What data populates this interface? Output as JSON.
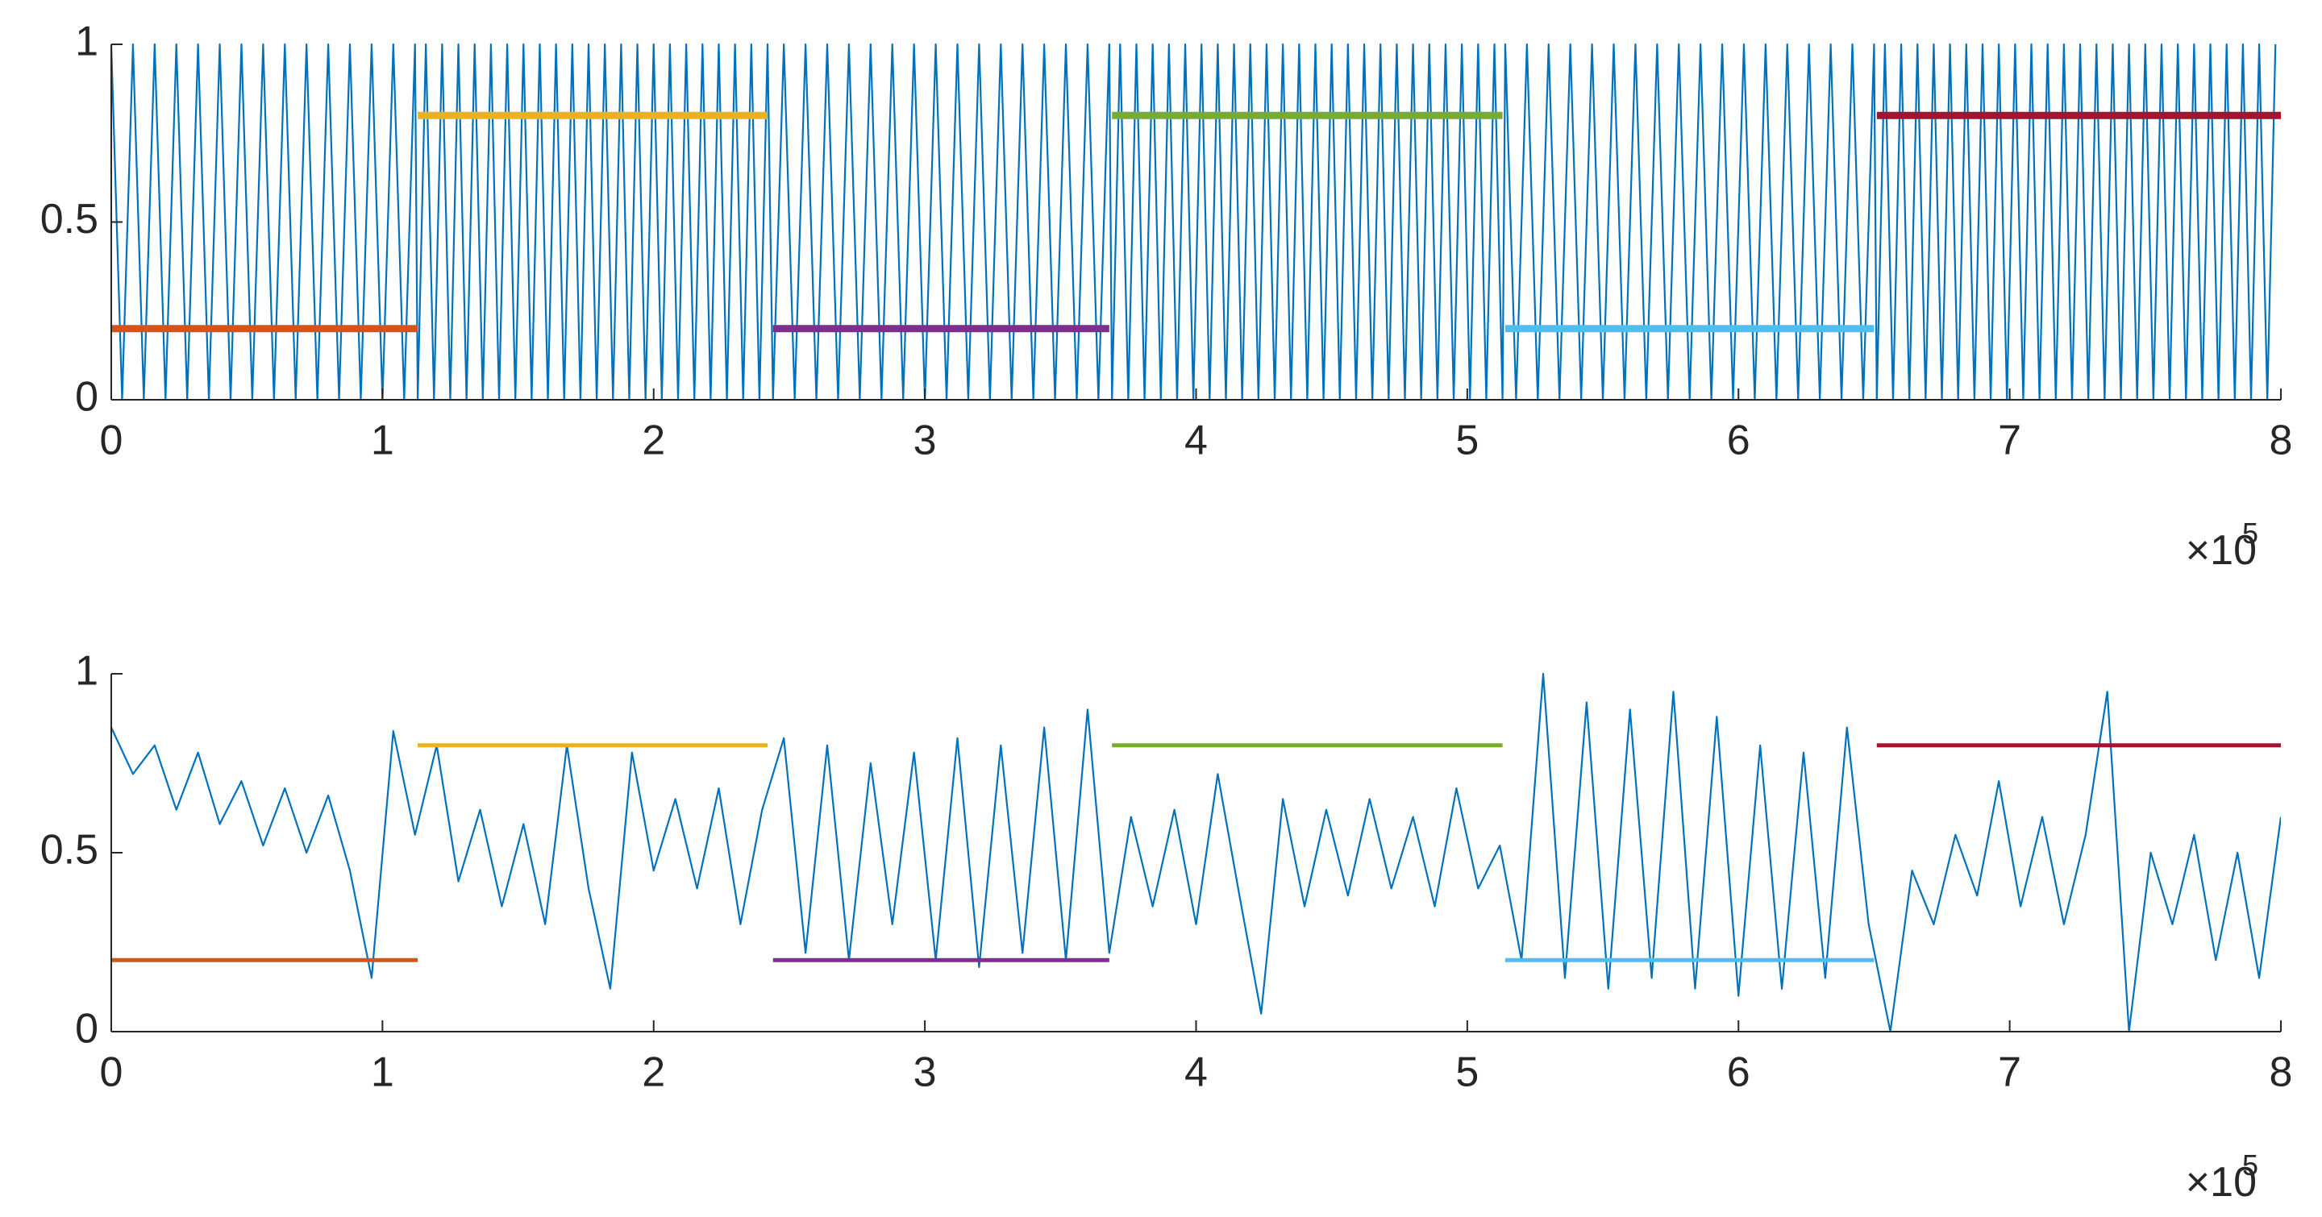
{
  "chart_data": [
    {
      "type": "line",
      "xlim": [
        0,
        8
      ],
      "ylim": [
        0,
        1
      ],
      "xticks": [
        0,
        1,
        2,
        3,
        4,
        5,
        6,
        7,
        8
      ],
      "yticks": [
        0,
        0.5,
        1
      ],
      "x_multiplier": {
        "base": "×10",
        "power": "5"
      },
      "series": [
        {
          "color": "#0072bd",
          "x": [
            0,
            0.04,
            0.08,
            0.12,
            0.16,
            0.2,
            0.24,
            0.28,
            0.32,
            0.36,
            0.4,
            0.44,
            0.48,
            0.52,
            0.56,
            0.6,
            0.64,
            0.68,
            0.72,
            0.76,
            0.8,
            0.84,
            0.88,
            0.92,
            0.96,
            1,
            1.04,
            1.08,
            1.12,
            1.13,
            1.16,
            1.19,
            1.22,
            1.25,
            1.28,
            1.31,
            1.34,
            1.37,
            1.4,
            1.43,
            1.46,
            1.49,
            1.52,
            1.55,
            1.58,
            1.61,
            1.64,
            1.67,
            1.7,
            1.73,
            1.76,
            1.79,
            1.82,
            1.85,
            1.88,
            1.91,
            1.94,
            1.97,
            2,
            2.03,
            2.06,
            2.09,
            2.12,
            2.15,
            2.18,
            2.21,
            2.24,
            2.27,
            2.3,
            2.33,
            2.36,
            2.39,
            2.42,
            2.44,
            2.48,
            2.52,
            2.56,
            2.6,
            2.64,
            2.68,
            2.72,
            2.76,
            2.8,
            2.84,
            2.88,
            2.92,
            2.96,
            3,
            3.04,
            3.08,
            3.12,
            3.16,
            3.2,
            3.24,
            3.28,
            3.32,
            3.36,
            3.4,
            3.44,
            3.48,
            3.52,
            3.56,
            3.6,
            3.64,
            3.68,
            3.69,
            3.72,
            3.75,
            3.78,
            3.81,
            3.84,
            3.87,
            3.9,
            3.93,
            3.96,
            3.99,
            4.02,
            4.05,
            4.08,
            4.11,
            4.14,
            4.17,
            4.2,
            4.23,
            4.26,
            4.29,
            4.32,
            4.35,
            4.38,
            4.41,
            4.44,
            4.47,
            4.5,
            4.53,
            4.56,
            4.59,
            4.62,
            4.65,
            4.68,
            4.71,
            4.74,
            4.77,
            4.8,
            4.83,
            4.86,
            4.89,
            4.92,
            4.95,
            4.98,
            5.01,
            5.04,
            5.07,
            5.1,
            5.13,
            5.14,
            5.18,
            5.22,
            5.26,
            5.3,
            5.34,
            5.38,
            5.42,
            5.46,
            5.5,
            5.54,
            5.58,
            5.62,
            5.66,
            5.7,
            5.74,
            5.78,
            5.82,
            5.86,
            5.9,
            5.94,
            5.98,
            6.02,
            6.06,
            6.1,
            6.14,
            6.18,
            6.22,
            6.26,
            6.3,
            6.34,
            6.38,
            6.42,
            6.46,
            6.5,
            6.51,
            6.54,
            6.57,
            6.6,
            6.63,
            6.66,
            6.69,
            6.72,
            6.75,
            6.78,
            6.81,
            6.84,
            6.87,
            6.9,
            6.93,
            6.96,
            6.99,
            7.02,
            7.05,
            7.08,
            7.11,
            7.14,
            7.17,
            7.2,
            7.23,
            7.26,
            7.29,
            7.32,
            7.35,
            7.38,
            7.41,
            7.44,
            7.47,
            7.5,
            7.53,
            7.56,
            7.59,
            7.62,
            7.65,
            7.68,
            7.71,
            7.74,
            7.77,
            7.8,
            7.83,
            7.86,
            7.89,
            7.92,
            7.95,
            7.98
          ],
          "values": [
            1,
            0,
            1,
            0,
            1,
            0,
            1,
            0,
            1,
            0,
            1,
            0,
            1,
            0,
            1,
            0,
            1,
            0,
            1,
            0,
            1,
            0,
            1,
            0,
            1,
            0,
            1,
            0,
            1,
            0,
            1,
            0,
            1,
            0,
            1,
            0,
            1,
            0,
            1,
            0,
            1,
            0,
            1,
            0,
            1,
            0,
            1,
            0,
            1,
            0,
            1,
            0,
            1,
            0,
            1,
            0,
            1,
            0,
            1,
            0,
            1,
            0,
            1,
            0,
            1,
            0,
            1,
            0,
            1,
            0,
            1,
            0,
            1,
            0,
            1,
            0,
            1,
            0,
            1,
            0,
            1,
            0,
            1,
            0,
            1,
            0,
            1,
            0,
            1,
            0,
            1,
            0,
            1,
            0,
            1,
            0,
            1,
            0,
            1,
            0,
            1,
            0,
            1,
            0,
            1,
            0,
            1,
            0,
            1,
            0,
            1,
            0,
            1,
            0,
            1,
            0,
            1,
            0,
            1,
            0,
            1,
            0,
            1,
            0,
            1,
            0,
            1,
            0,
            1,
            0,
            1,
            0,
            1,
            0,
            1,
            0,
            1,
            0,
            1,
            0,
            1,
            0,
            1,
            0,
            1,
            0,
            1,
            0,
            1,
            0,
            1,
            0,
            1,
            0,
            1,
            0,
            1,
            0,
            1,
            0,
            1,
            0,
            1,
            0,
            1,
            0,
            1,
            0,
            1,
            0,
            1,
            0,
            1,
            0,
            1,
            0,
            1,
            0,
            1,
            0,
            1,
            0,
            1,
            0,
            1,
            0,
            1,
            0,
            1,
            0,
            1,
            0,
            1,
            0,
            1,
            0,
            1,
            0,
            1,
            0,
            1,
            0,
            1,
            0,
            1,
            0,
            1,
            0,
            1,
            0,
            1,
            0,
            1,
            0,
            1,
            0,
            1,
            0,
            1,
            0,
            1,
            0,
            1,
            0,
            1,
            0,
            1,
            0,
            1,
            0,
            1,
            0,
            1,
            0,
            1,
            0,
            1,
            0,
            1
          ]
        },
        {
          "color": "#d95319",
          "x": [
            0,
            1.13
          ],
          "values": [
            0.2,
            0.2
          ]
        },
        {
          "color": "#edb120",
          "x": [
            1.13,
            2.42
          ],
          "values": [
            0.8,
            0.8
          ]
        },
        {
          "color": "#7e2f8e",
          "x": [
            2.44,
            3.68
          ],
          "values": [
            0.2,
            0.2
          ]
        },
        {
          "color": "#77ac30",
          "x": [
            3.69,
            5.13
          ],
          "values": [
            0.8,
            0.8
          ]
        },
        {
          "color": "#4dbeee",
          "x": [
            5.14,
            6.5
          ],
          "values": [
            0.2,
            0.2
          ]
        },
        {
          "color": "#a2142f",
          "x": [
            6.51,
            8
          ],
          "values": [
            0.8,
            0.8
          ]
        }
      ]
    },
    {
      "type": "line",
      "xlim": [
        0,
        8
      ],
      "ylim": [
        0,
        1
      ],
      "xticks": [
        0,
        1,
        2,
        3,
        4,
        5,
        6,
        7,
        8
      ],
      "yticks": [
        0,
        0.5,
        1
      ],
      "x_multiplier": {
        "base": "×10",
        "power": "5"
      },
      "series": [
        {
          "color": "#0072bd",
          "x": [
            0,
            0.08,
            0.16,
            0.24,
            0.32,
            0.4,
            0.48,
            0.56,
            0.64,
            0.72,
            0.8,
            0.88,
            0.96,
            1.04,
            1.12,
            1.2,
            1.28,
            1.36,
            1.44,
            1.52,
            1.6,
            1.68,
            1.76,
            1.84,
            1.92,
            2,
            2.08,
            2.16,
            2.24,
            2.32,
            2.4,
            2.48,
            2.56,
            2.64,
            2.72,
            2.8,
            2.88,
            2.96,
            3.04,
            3.12,
            3.2,
            3.28,
            3.36,
            3.44,
            3.52,
            3.6,
            3.68,
            3.76,
            3.84,
            3.92,
            4,
            4.08,
            4.16,
            4.24,
            4.32,
            4.4,
            4.48,
            4.56,
            4.64,
            4.72,
            4.8,
            4.88,
            4.96,
            5.04,
            5.12,
            5.2,
            5.28,
            5.36,
            5.44,
            5.52,
            5.6,
            5.68,
            5.76,
            5.84,
            5.92,
            6,
            6.08,
            6.16,
            6.24,
            6.32,
            6.4,
            6.48,
            6.56,
            6.64,
            6.72,
            6.8,
            6.88,
            6.96,
            7.04,
            7.12,
            7.2,
            7.28,
            7.36,
            7.44,
            7.52,
            7.6,
            7.68,
            7.76,
            7.84,
            7.92,
            8
          ],
          "values": [
            0.85,
            0.72,
            0.8,
            0.62,
            0.78,
            0.58,
            0.7,
            0.52,
            0.68,
            0.5,
            0.66,
            0.45,
            0.15,
            0.84,
            0.55,
            0.8,
            0.42,
            0.62,
            0.35,
            0.58,
            0.3,
            0.8,
            0.4,
            0.12,
            0.78,
            0.45,
            0.65,
            0.4,
            0.68,
            0.3,
            0.62,
            0.82,
            0.22,
            0.8,
            0.2,
            0.75,
            0.3,
            0.78,
            0.2,
            0.82,
            0.18,
            0.8,
            0.22,
            0.85,
            0.2,
            0.9,
            0.22,
            0.6,
            0.35,
            0.62,
            0.3,
            0.72,
            0.38,
            0.05,
            0.65,
            0.35,
            0.62,
            0.38,
            0.65,
            0.4,
            0.6,
            0.35,
            0.68,
            0.4,
            0.52,
            0.2,
            1,
            0.15,
            0.92,
            0.12,
            0.9,
            0.15,
            0.95,
            0.12,
            0.88,
            0.1,
            0.8,
            0.12,
            0.78,
            0.15,
            0.85,
            0.3,
            0,
            0.45,
            0.3,
            0.55,
            0.38,
            0.7,
            0.35,
            0.6,
            0.3,
            0.55,
            0.95,
            0,
            0.5,
            0.3,
            0.55,
            0.2,
            0.5,
            0.15,
            0.6
          ]
        },
        {
          "color": "#d95319",
          "x": [
            0,
            1.13
          ],
          "values": [
            0.2,
            0.2
          ]
        },
        {
          "color": "#edb120",
          "x": [
            1.13,
            2.42
          ],
          "values": [
            0.8,
            0.8
          ]
        },
        {
          "color": "#7e2f8e",
          "x": [
            2.44,
            3.68
          ],
          "values": [
            0.2,
            0.2
          ]
        },
        {
          "color": "#77ac30",
          "x": [
            3.69,
            5.13
          ],
          "values": [
            0.8,
            0.8
          ]
        },
        {
          "color": "#4dbeee",
          "x": [
            5.14,
            6.5
          ],
          "values": [
            0.2,
            0.2
          ]
        },
        {
          "color": "#a2142f",
          "x": [
            6.51,
            8
          ],
          "values": [
            0.8,
            0.8
          ]
        }
      ]
    }
  ]
}
